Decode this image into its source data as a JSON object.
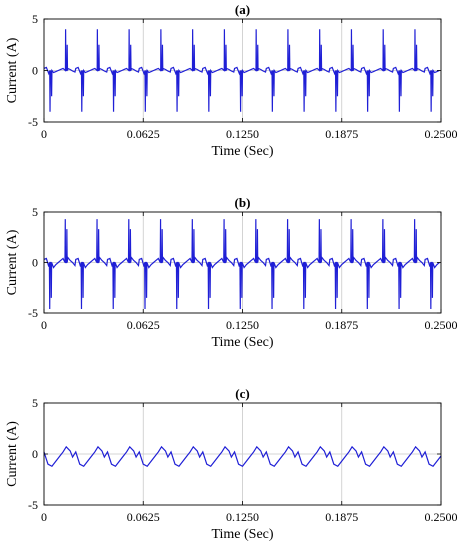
{
  "chart_data": [
    {
      "type": "line",
      "title": "(a)",
      "xlabel": "Time (Sec)",
      "ylabel": "Current (A)",
      "xlim": [
        0,
        0.25
      ],
      "ylim": [
        -5,
        5
      ],
      "xticks": [
        0,
        0.0625,
        0.125,
        0.1875,
        0.25
      ],
      "xtick_labels": [
        "0",
        "0.0625",
        "0.1250",
        "0.1875",
        "0.2500"
      ],
      "yticks": [
        -5,
        0,
        5
      ],
      "ytick_labels": [
        "-5",
        "0",
        "5"
      ],
      "grid": true,
      "line_color": "#1f1fd6",
      "period": 0.02,
      "series": [
        {
          "x": [
            0,
            0.0015,
            0.003,
            0.0045,
            0.006,
            0.0075,
            0.009,
            0.0105,
            0.012,
            0.0135,
            0.015,
            0.0165,
            0.018,
            0.0195,
            0.02
          ],
          "y": [
            0.2,
            0.3,
            -0.3,
            -0.2,
            -0.2,
            -0.1,
            0.0,
            0.1,
            0.2,
            0.25,
            0.2,
            0.1,
            -0.05,
            -0.15,
            0.2
          ]
        }
      ],
      "spikes": [
        {
          "x": 0.0038,
          "y": -4.0
        },
        {
          "x": 0.0048,
          "y": -2.5
        },
        {
          "x": 0.0136,
          "y": 4.0
        },
        {
          "x": 0.0146,
          "y": 2.5
        }
      ]
    },
    {
      "type": "line",
      "title": "(b)",
      "xlabel": "Time (Sec)",
      "ylabel": "Current (A)",
      "xlim": [
        0,
        0.25
      ],
      "ylim": [
        -5,
        5
      ],
      "xticks": [
        0,
        0.0625,
        0.125,
        0.1875,
        0.25
      ],
      "xtick_labels": [
        "0",
        "0.0625",
        "0.1250",
        "0.1875",
        "0.2500"
      ],
      "yticks": [
        -5,
        0,
        5
      ],
      "ytick_labels": [
        "-5",
        "0",
        "5"
      ],
      "grid": true,
      "line_color": "#1f1fd6",
      "period": 0.02,
      "series": [
        {
          "x": [
            0,
            0.0015,
            0.003,
            0.0045,
            0.006,
            0.0075,
            0.009,
            0.0105,
            0.012,
            0.0135,
            0.015,
            0.0165,
            0.018,
            0.0195,
            0.02
          ],
          "y": [
            0.3,
            0.4,
            -0.4,
            -0.3,
            -0.5,
            -0.2,
            0.0,
            0.2,
            0.4,
            0.3,
            0.5,
            0.2,
            0.0,
            -0.3,
            0.3
          ]
        }
      ],
      "spikes": [
        {
          "x": 0.0036,
          "y": -4.6
        },
        {
          "x": 0.0046,
          "y": -3.5
        },
        {
          "x": 0.0134,
          "y": 4.3
        },
        {
          "x": 0.0144,
          "y": 3.3
        }
      ]
    },
    {
      "type": "line",
      "title": "(c)",
      "xlabel": "Time (Sec)",
      "ylabel": "Current (A)",
      "xlim": [
        0,
        0.25
      ],
      "ylim": [
        -5,
        5
      ],
      "xticks": [
        0,
        0.0625,
        0.125,
        0.1875,
        0.25
      ],
      "xtick_labels": [
        "0",
        "0.0625",
        "0.1250",
        "0.1875",
        "0.2500"
      ],
      "yticks": [
        -5,
        0,
        5
      ],
      "ytick_labels": [
        "-5",
        "0",
        "5"
      ],
      "grid": true,
      "line_color": "#1f1fd6",
      "period": 0.02,
      "series": [
        {
          "x": [
            0,
            0.0025,
            0.005,
            0.0075,
            0.01,
            0.012,
            0.014,
            0.0165,
            0.018,
            0.02
          ],
          "y": [
            0.2,
            -1.0,
            -1.2,
            -0.7,
            -0.2,
            0.2,
            0.7,
            0.3,
            -0.3,
            0.2
          ]
        }
      ],
      "spikes": []
    }
  ]
}
